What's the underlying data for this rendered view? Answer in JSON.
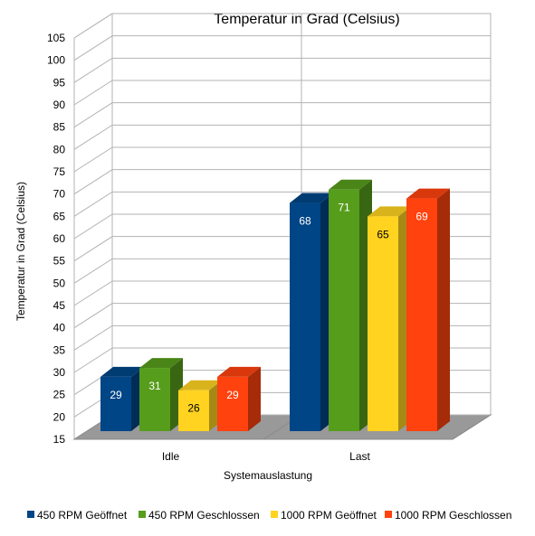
{
  "chart_data": {
    "type": "bar",
    "title": "Temperatur in Grad (Celsius)",
    "xlabel": "Systemauslastung",
    "ylabel": "Temperatur in Grad (Celsius)",
    "categories": [
      "Idle",
      "Last"
    ],
    "ylim": [
      15,
      105
    ],
    "yticks": [
      15,
      20,
      25,
      30,
      35,
      40,
      45,
      50,
      55,
      60,
      65,
      70,
      75,
      80,
      85,
      90,
      95,
      100,
      105
    ],
    "series": [
      {
        "name": "450 RPM Geöffnet",
        "values": [
          29,
          68
        ],
        "color": "#004586"
      },
      {
        "name": "450 RPM Geschlossen",
        "values": [
          31,
          71
        ],
        "color": "#579d1c"
      },
      {
        "name": "1000 RPM Geöffnet",
        "values": [
          26,
          65
        ],
        "color": "#ffd320"
      },
      {
        "name": "1000 RPM Geschlossen",
        "values": [
          29,
          69
        ],
        "color": "#ff420e"
      }
    ],
    "grid": true,
    "legend": "bottom",
    "three_d": true
  }
}
